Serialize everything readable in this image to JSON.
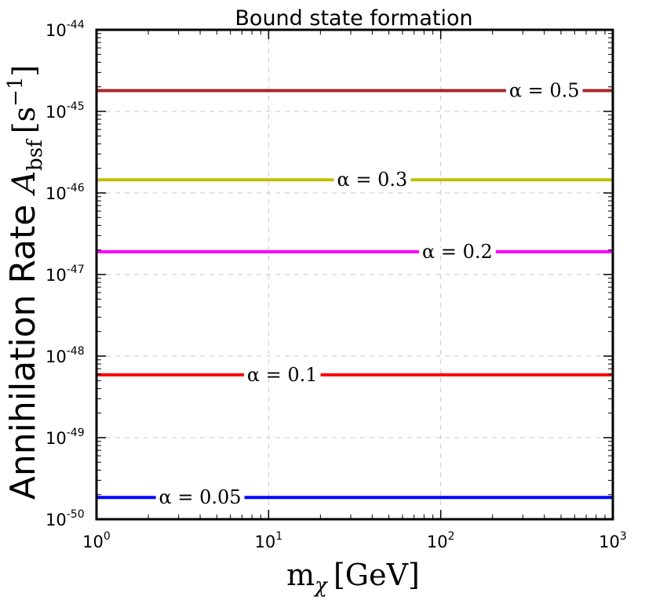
{
  "chart_data": {
    "type": "line",
    "title": "Bound state formation",
    "xlabel": {
      "prefix": "m",
      "sub": "χ",
      "unit": "[GeV]"
    },
    "ylabel": {
      "text": "Annihilation Rate",
      "symbol": "A",
      "sub": "bsf",
      "unit_open": "[s",
      "unit_exp": "−1",
      "unit_close": "]"
    },
    "x_scale": "log",
    "y_scale": "log",
    "xlim": [
      1,
      1000
    ],
    "ylim": [
      1e-50,
      1e-44
    ],
    "x_ticks": [
      {
        "base": "10",
        "exp": "0",
        "value": 1
      },
      {
        "base": "10",
        "exp": "1",
        "value": 10
      },
      {
        "base": "10",
        "exp": "2",
        "value": 100
      },
      {
        "base": "10",
        "exp": "3",
        "value": 1000
      }
    ],
    "y_ticks": [
      {
        "base": "10",
        "exp": "-50",
        "value": 1e-50
      },
      {
        "base": "10",
        "exp": "-49",
        "value": 1e-49
      },
      {
        "base": "10",
        "exp": "-48",
        "value": 1e-48
      },
      {
        "base": "10",
        "exp": "-47",
        "value": 1e-47
      },
      {
        "base": "10",
        "exp": "-46",
        "value": 1e-46
      },
      {
        "base": "10",
        "exp": "-45",
        "value": 1e-45
      },
      {
        "base": "10",
        "exp": "-44",
        "value": 1e-44
      }
    ],
    "grid": true,
    "series": [
      {
        "label": "α = 0.5",
        "x": [
          1,
          1000
        ],
        "y": [
          1.8e-45,
          1.8e-45
        ],
        "color": "#a52a2a",
        "label_at_x": 400
      },
      {
        "label": "α = 0.3",
        "x": [
          1,
          1000
        ],
        "y": [
          1.45e-46,
          1.45e-46
        ],
        "color": "#bfbf00",
        "label_at_x": 40
      },
      {
        "label": "α = 0.2",
        "x": [
          1,
          1000
        ],
        "y": [
          1.9e-47,
          1.9e-47
        ],
        "color": "#ff00ff",
        "label_at_x": 125
      },
      {
        "label": "α = 0.1",
        "x": [
          1,
          1000
        ],
        "y": [
          5.9e-49,
          5.9e-49
        ],
        "color": "#ff0000",
        "label_at_x": 12
      },
      {
        "label": "α = 0.05",
        "x": [
          1,
          1000
        ],
        "y": [
          1.85e-50,
          1.85e-50
        ],
        "color": "#0000ff",
        "label_at_x": 4
      }
    ]
  }
}
